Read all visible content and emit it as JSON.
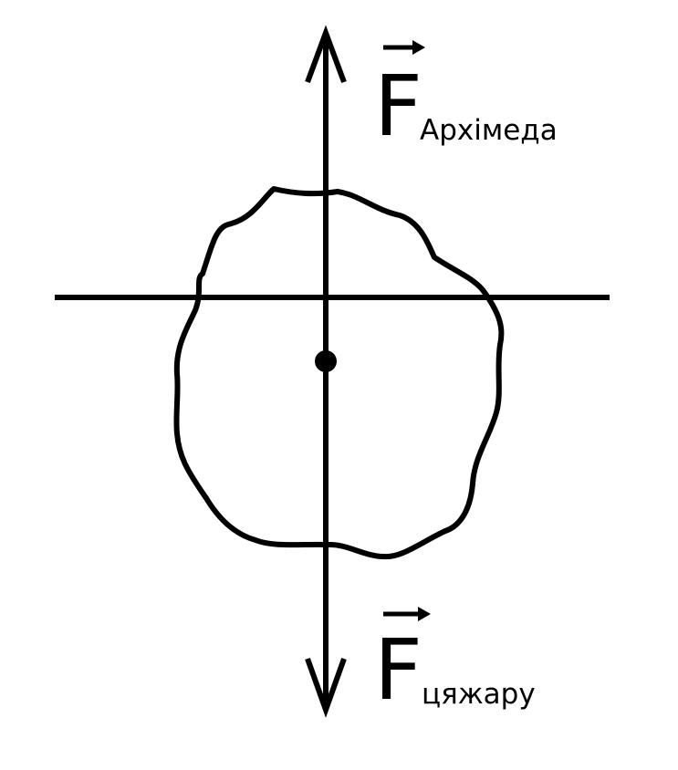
{
  "diagram": {
    "title": "",
    "colors": {
      "stroke": "#000000",
      "background": "#ffffff"
    },
    "forces": {
      "archimedes": {
        "symbol": "F",
        "subscript": "Архімеда",
        "direction": "up",
        "vector_arrow": "right-arrow-icon"
      },
      "gravity": {
        "symbol": "F",
        "subscript": "цяжару",
        "direction": "down",
        "vector_arrow": "right-arrow-icon"
      }
    },
    "elements": {
      "liquid_surface": "horizontal line",
      "body": "irregular floating body",
      "center_of_mass": "point"
    }
  }
}
